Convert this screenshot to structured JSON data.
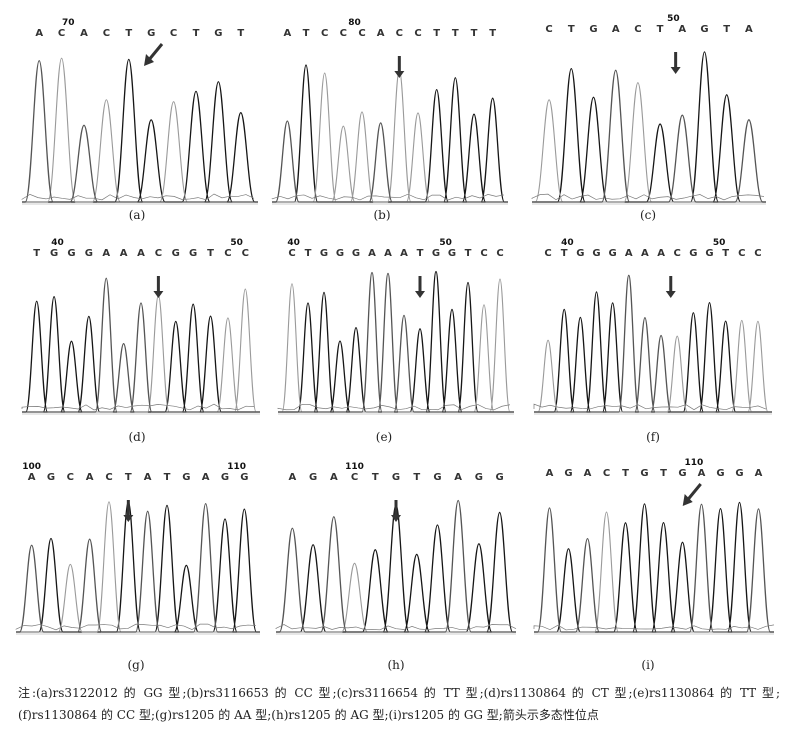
{
  "panels": [
    {
      "id": "a",
      "caption": "(a)",
      "bases": [
        "A",
        "C",
        "A",
        "C",
        "T",
        "G",
        "C",
        "T",
        "G",
        "T"
      ],
      "pos": [
        {
          "label": "70",
          "at": 1.3
        }
      ],
      "arrow": {
        "style": "diag",
        "at": 4.5
      }
    },
    {
      "id": "b",
      "caption": "(b)",
      "bases": [
        "A",
        "T",
        "C",
        "C",
        "C",
        "A",
        "C",
        "C",
        "T",
        "T",
        "T",
        "T"
      ],
      "pos": [
        {
          "label": "80",
          "at": 3.6
        }
      ],
      "arrow": {
        "style": "down",
        "at": 6
      }
    },
    {
      "id": "c",
      "caption": "(c)",
      "bases": [
        "C",
        "T",
        "G",
        "A",
        "C",
        "T",
        "A",
        "G",
        "T",
        "A"
      ],
      "pos": [
        {
          "label": "50",
          "at": 5.6
        }
      ],
      "arrow": {
        "style": "down",
        "at": 5.7
      }
    },
    {
      "id": "d",
      "caption": "(d)",
      "bases": [
        "T",
        "G",
        "G",
        "G",
        "A",
        "A",
        "A",
        "C",
        "G",
        "G",
        "T",
        "C",
        "C"
      ],
      "pos": [
        {
          "label": "40",
          "at": 1.2
        },
        {
          "label": "50",
          "at": 11.5
        }
      ],
      "arrow": {
        "style": "down",
        "at": 7
      }
    },
    {
      "id": "e",
      "caption": "(e)",
      "bases": [
        "C",
        "T",
        "G",
        "G",
        "G",
        "A",
        "A",
        "A",
        "T",
        "G",
        "G",
        "T",
        "C",
        "C"
      ],
      "pos": [
        {
          "label": "40",
          "at": 0.1
        },
        {
          "label": "50",
          "at": 9.6
        }
      ],
      "arrow": {
        "style": "down",
        "at": 8
      }
    },
    {
      "id": "f",
      "caption": "(f)",
      "bases": [
        "C",
        "T",
        "G",
        "G",
        "G",
        "A",
        "A",
        "A",
        "C",
        "G",
        "G",
        "T",
        "C",
        "C"
      ],
      "pos": [
        {
          "label": "40",
          "at": 1.2
        },
        {
          "label": "50",
          "at": 10.6
        }
      ],
      "arrow": {
        "style": "down",
        "at": 7.6
      }
    },
    {
      "id": "g",
      "caption": "(g)",
      "bases": [
        "A",
        "G",
        "C",
        "A",
        "C",
        "T",
        "A",
        "T",
        "G",
        "A",
        "G",
        "G"
      ],
      "pos": [
        {
          "label": "100",
          "at": 0
        },
        {
          "label": "110",
          "at": 10.6
        }
      ],
      "arrow": {
        "style": "down",
        "at": 5
      }
    },
    {
      "id": "h",
      "caption": "(h)",
      "bases": [
        "A",
        "G",
        "A",
        "C",
        "T",
        "G",
        "T",
        "G",
        "A",
        "G",
        "G"
      ],
      "pos": [
        {
          "label": "110",
          "at": 3
        }
      ],
      "arrow": {
        "style": "down",
        "at": 5
      }
    },
    {
      "id": "i",
      "caption": "(i)",
      "bases": [
        "A",
        "G",
        "A",
        "C",
        "T",
        "G",
        "T",
        "G",
        "A",
        "G",
        "G",
        "A"
      ],
      "pos": [
        {
          "label": "110",
          "at": 7.6
        }
      ],
      "arrow": {
        "style": "diag",
        "at": 6.8
      }
    }
  ],
  "note": "注:(a)rs3122012 的 GG 型;(b)rs3116653 的 CC 型;(c)rs3116654 的 TT 型;(d)rs1130864 的 CT 型;(e)rs1130864 的 TT 型;(f)rs1130864 的 CC 型;(g)rs1205 的 AA 型;(h)rs1205 的 AG 型;(i)rs1205 的 GG 型;箭头示多态性位点"
}
